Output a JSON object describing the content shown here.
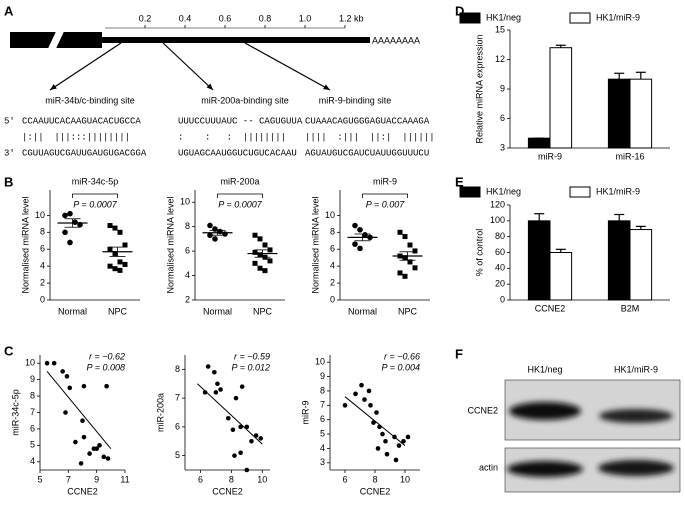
{
  "panel_labels": [
    "A",
    "B",
    "C",
    "D",
    "E",
    "F"
  ],
  "gene_map": {
    "scale_ticks": [
      0.2,
      0.4,
      0.6,
      0.8,
      {
        "value": 1,
        "label": "1.0"
      },
      {
        "value": 1.2,
        "label": "1.2 kb"
      }
    ],
    "poly_a": "AAAAAAAA",
    "sites": [
      {
        "label": "miR-34b/c-binding site",
        "position": 0.08
      },
      {
        "label": "miR-200a-binding site",
        "position": 0.29
      },
      {
        "label": "miR-9-binding site",
        "position": 0.7
      }
    ],
    "sequences": {
      "prime5": "5′",
      "prime3": "3′",
      "top": [
        "CCAAUUCACAAGUACACUGCCA",
        "UUUCCUUUAUC -- CAGUGUUA",
        "CUAAACAGUGGGAGUACCAAAGA"
      ],
      "pairs": [
        "|:||  |||:::||||||||",
        ":    :   :  ||||||||",
        "||||  :|||  ||:|  ||||||"
      ],
      "bottom": [
        "CGUUAGUCGAUUGAUGUGACGGA",
        "UGUAGCAAUGGUCUGUCACAAU",
        "AGUAUGUCGAUCUAUUGGUUUCU"
      ]
    }
  },
  "chart_data": [
    {
      "type": "dot",
      "title": "miR-34c-5p",
      "ylabel": "Normalised miRNA level",
      "annotation": "P = 0.0007",
      "categories": [
        "Normal",
        "NPC"
      ],
      "markers": [
        "circle",
        "square"
      ],
      "points": [
        [
          10.0,
          10.2,
          9.2,
          8.9,
          8.0,
          6.8
        ],
        [
          8.8,
          8.5,
          8.0,
          6.5,
          6.0,
          5.5,
          4.5,
          4.2,
          4.0,
          3.7,
          3.5
        ]
      ],
      "mean": [
        9.1,
        5.7
      ],
      "sem": [
        0.5,
        0.55
      ],
      "ylim": [
        0,
        13
      ],
      "yticks": [
        0,
        2,
        4,
        6,
        8,
        10
      ]
    },
    {
      "type": "dot",
      "title": "miR-200a",
      "ylabel": "Normalised miRNA level",
      "annotation": "P = 0.0007",
      "categories": [
        "Normal",
        "NPC"
      ],
      "markers": [
        "circle",
        "square"
      ],
      "points": [
        [
          8.1,
          7.8,
          7.6,
          7.4,
          7.3,
          7.0
        ],
        [
          7.3,
          7.0,
          6.5,
          6.1,
          5.9,
          5.7,
          5.5,
          5.2,
          5.0,
          4.6,
          4.4
        ]
      ],
      "mean": [
        7.5,
        5.8
      ],
      "sem": [
        0.2,
        0.3
      ],
      "ylim": [
        2,
        11
      ],
      "yticks": [
        2,
        4,
        6,
        8,
        10
      ]
    },
    {
      "type": "dot",
      "title": "miR-9",
      "ylabel": "Normalised miRNA level",
      "annotation": "P = 0.007",
      "categories": [
        "Normal",
        "NPC"
      ],
      "markers": [
        "circle",
        "square"
      ],
      "points": [
        [
          8.8,
          8.3,
          7.7,
          7.4,
          6.6,
          6.1
        ],
        [
          8.0,
          7.5,
          6.5,
          5.8,
          5.2,
          5.0,
          4.5,
          3.8,
          3.2,
          2.8
        ]
      ],
      "mean": [
        7.4,
        5.2
      ],
      "sem": [
        0.4,
        0.5
      ],
      "ylim": [
        0,
        13
      ],
      "yticks": [
        0,
        2,
        4,
        6,
        8,
        10
      ]
    },
    {
      "type": "scatter",
      "xlabel": "CCNE2",
      "ylabel": "miR-34c-5p",
      "annotations": [
        "r = −0.62",
        "P = 0.008"
      ],
      "x": [
        5.5,
        6,
        6.6,
        6.9,
        7.1,
        6.8,
        8.1,
        9.7,
        7.5,
        8,
        8.1,
        7.9,
        8.8,
        9,
        9.2,
        9.5,
        9.8,
        8.5
      ],
      "y": [
        10,
        10,
        9.5,
        9.2,
        8.5,
        7,
        8.6,
        8.6,
        5.2,
        6.5,
        5.5,
        3.9,
        4.8,
        4.8,
        5,
        4.3,
        4.2,
        4.5
      ],
      "trendline": {
        "x": [
          5.5,
          10
        ],
        "y": [
          9.5,
          4.8
        ]
      },
      "xlim": [
        5,
        11
      ],
      "xticks": [
        5,
        7,
        9,
        11
      ],
      "ylim": [
        3.5,
        10.5
      ],
      "yticks": [
        4,
        5,
        6,
        7,
        8,
        9,
        10
      ]
    },
    {
      "type": "scatter",
      "xlabel": "CCNE2",
      "ylabel": "miR-200a",
      "annotations": [
        "r = −0.59",
        "P = 0.012"
      ],
      "x": [
        6.5,
        6.9,
        7.1,
        7.3,
        7.0,
        6.3,
        8.3,
        8.7,
        7.8,
        8.1,
        8.6,
        9.0,
        9.6,
        9.9,
        8.2,
        8.6,
        9.0,
        9.3
      ],
      "y": [
        8.1,
        7.9,
        7.5,
        7.3,
        7.2,
        7.2,
        7.0,
        7.4,
        6.3,
        5.9,
        6.0,
        6.0,
        5.7,
        5.6,
        5.0,
        5.1,
        4.5,
        5.5
      ],
      "trendline": {
        "x": [
          5.8,
          10
        ],
        "y": [
          7.5,
          5.4
        ]
      },
      "xlim": [
        5,
        10.5
      ],
      "xticks": [
        6,
        8,
        10
      ],
      "ylim": [
        4.5,
        8.5
      ],
      "yticks": [
        5,
        6,
        7,
        8
      ]
    },
    {
      "type": "scatter",
      "xlabel": "CCNE2",
      "ylabel": "miR-9",
      "annotations": [
        "r = −0.66",
        "P = 0.004"
      ],
      "x": [
        6,
        6.7,
        7.1,
        7.6,
        7.3,
        7.7,
        8.1,
        7.9,
        8.3,
        8.5,
        8.7,
        8.2,
        9.3,
        9.6,
        9.9,
        10.2,
        8.8,
        9.4
      ],
      "y": [
        7,
        7.8,
        8.4,
        8,
        7.4,
        7.0,
        6.5,
        5.8,
        5.5,
        5.0,
        4.5,
        4.0,
        4.8,
        4.2,
        4.5,
        4.8,
        3.6,
        3.2
      ],
      "trendline": {
        "x": [
          6,
          10
        ],
        "y": [
          7.6,
          4.2
        ]
      },
      "xlim": [
        5,
        11
      ],
      "xticks": [
        6,
        8,
        10
      ],
      "ylim": [
        2.5,
        10.5
      ],
      "yticks": [
        3,
        4,
        5,
        6,
        7,
        8,
        9,
        10
      ]
    },
    {
      "type": "bar",
      "ylabel": "Relative miRNA expression",
      "categories": [
        "miR-9",
        "miR-16"
      ],
      "series": [
        {
          "name": "HK1/neg",
          "color": "#000000",
          "values": [
            4,
            10
          ],
          "errors": [
            0,
            0.6
          ]
        },
        {
          "name": "HK1/miR-9",
          "color": "#ffffff",
          "values": [
            13.2,
            10
          ],
          "errors": [
            0.25,
            0.7
          ]
        }
      ],
      "legend": "top",
      "ylim": [
        3,
        15
      ],
      "yticks": [
        3,
        6,
        9,
        12,
        15
      ]
    },
    {
      "type": "bar",
      "ylabel": "% of control",
      "categories": [
        "CCNE2",
        "B2M"
      ],
      "series": [
        {
          "name": "HK1/neg",
          "color": "#000000",
          "values": [
            100,
            100
          ],
          "errors": [
            9,
            8
          ]
        },
        {
          "name": "HK1/miR-9",
          "color": "#ffffff",
          "values": [
            60,
            89
          ],
          "errors": [
            4,
            4
          ]
        }
      ],
      "legend": "top",
      "ylim": [
        0,
        120
      ],
      "yticks": [
        0,
        20,
        40,
        60,
        80,
        100,
        120
      ]
    }
  ],
  "blot": {
    "columns": [
      "HK1/neg",
      "HK1/miR-9"
    ],
    "rows": [
      "CCNE2",
      "actin"
    ]
  }
}
